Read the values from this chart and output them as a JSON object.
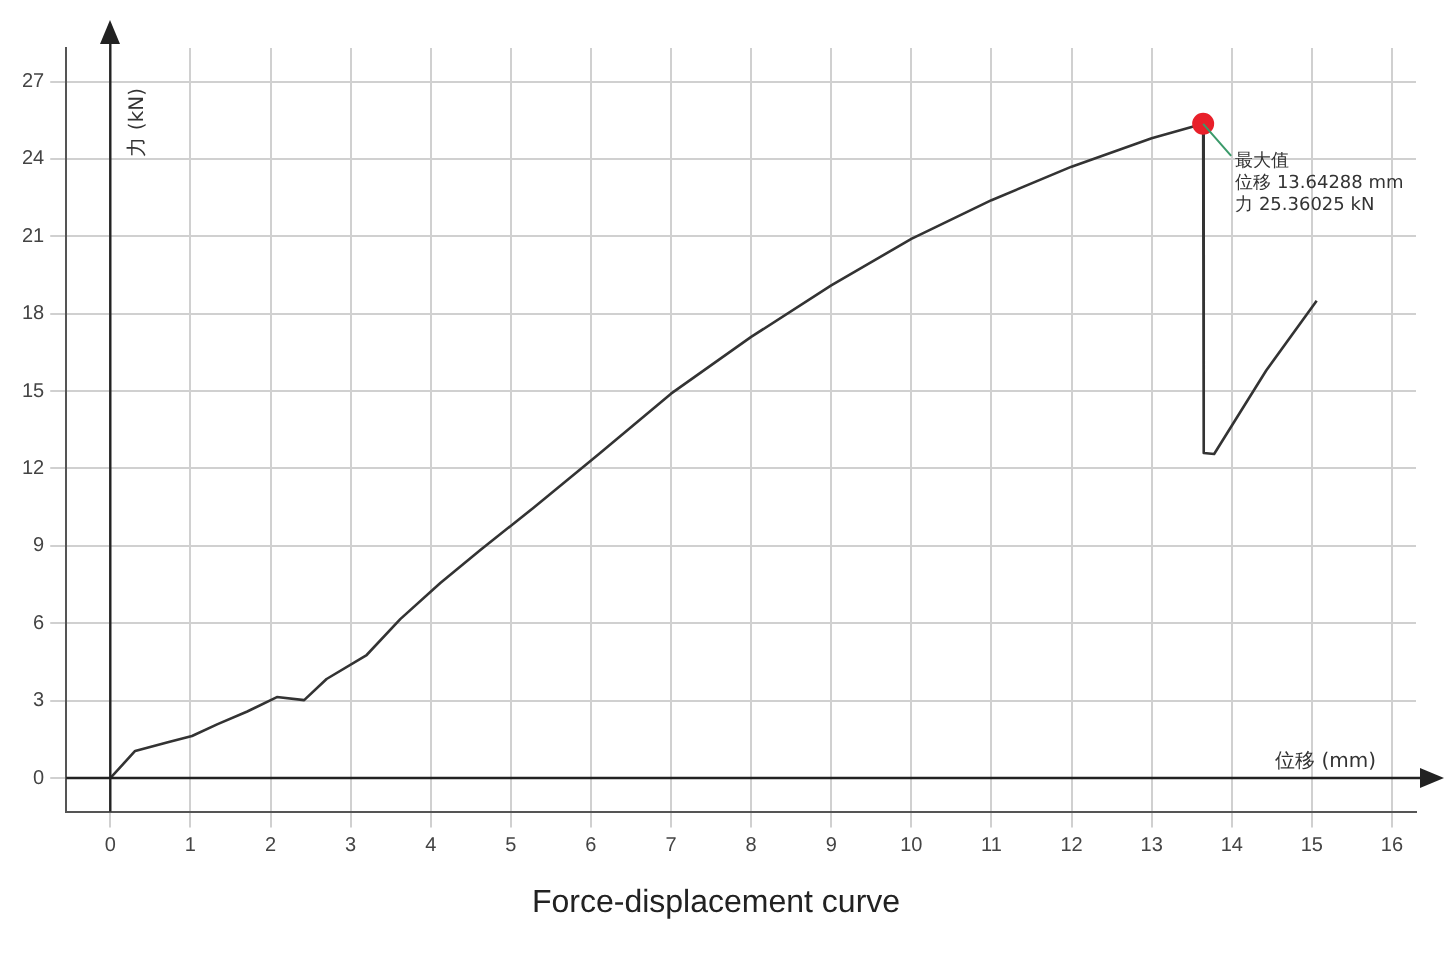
{
  "chart_data": {
    "type": "line",
    "title": "Force-displacement curve",
    "xlabel": "位移 (mm)",
    "ylabel": "力 (kN)",
    "xlim": [
      -0.55,
      16.3
    ],
    "ylim": [
      -1.3,
      28.3
    ],
    "xticks": [
      0,
      1,
      2,
      3,
      4,
      5,
      6,
      7,
      8,
      9,
      10,
      11,
      12,
      13,
      14,
      15,
      16
    ],
    "yticks": [
      0,
      3,
      6,
      9,
      12,
      15,
      18,
      21,
      24,
      27
    ],
    "grid": true,
    "marker": "none",
    "line_style": "solid",
    "series": [
      {
        "color": "#333333",
        "x": [
          0,
          0.31,
          0.73,
          1.02,
          1.34,
          1.71,
          2.08,
          2.42,
          2.7,
          3.2,
          3.62,
          4.12,
          4.62,
          5.28,
          6.1,
          7,
          8,
          9,
          10,
          11,
          12,
          13,
          13.64288,
          13.65,
          13.78,
          14.43,
          15.06
        ],
        "values": [
          0,
          1.05,
          1.4,
          1.63,
          2.09,
          2.58,
          3.14,
          3.02,
          3.84,
          4.77,
          6.16,
          7.56,
          8.84,
          10.47,
          12.56,
          14.9,
          17.1,
          19.1,
          20.9,
          22.4,
          23.7,
          24.8,
          25.36025,
          12.6,
          12.56,
          15.8,
          18.5
        ]
      },
      {
        "type": "scatter",
        "color": "#e8202a",
        "marker": "circle",
        "x": [
          13.64288
        ],
        "values": [
          25.36025
        ]
      }
    ],
    "annotations": [
      {
        "text": "最大值",
        "x": 13.64288,
        "y": 25.36025
      },
      "位移 13.64288 mm",
      "力 25.36025 kN"
    ]
  }
}
